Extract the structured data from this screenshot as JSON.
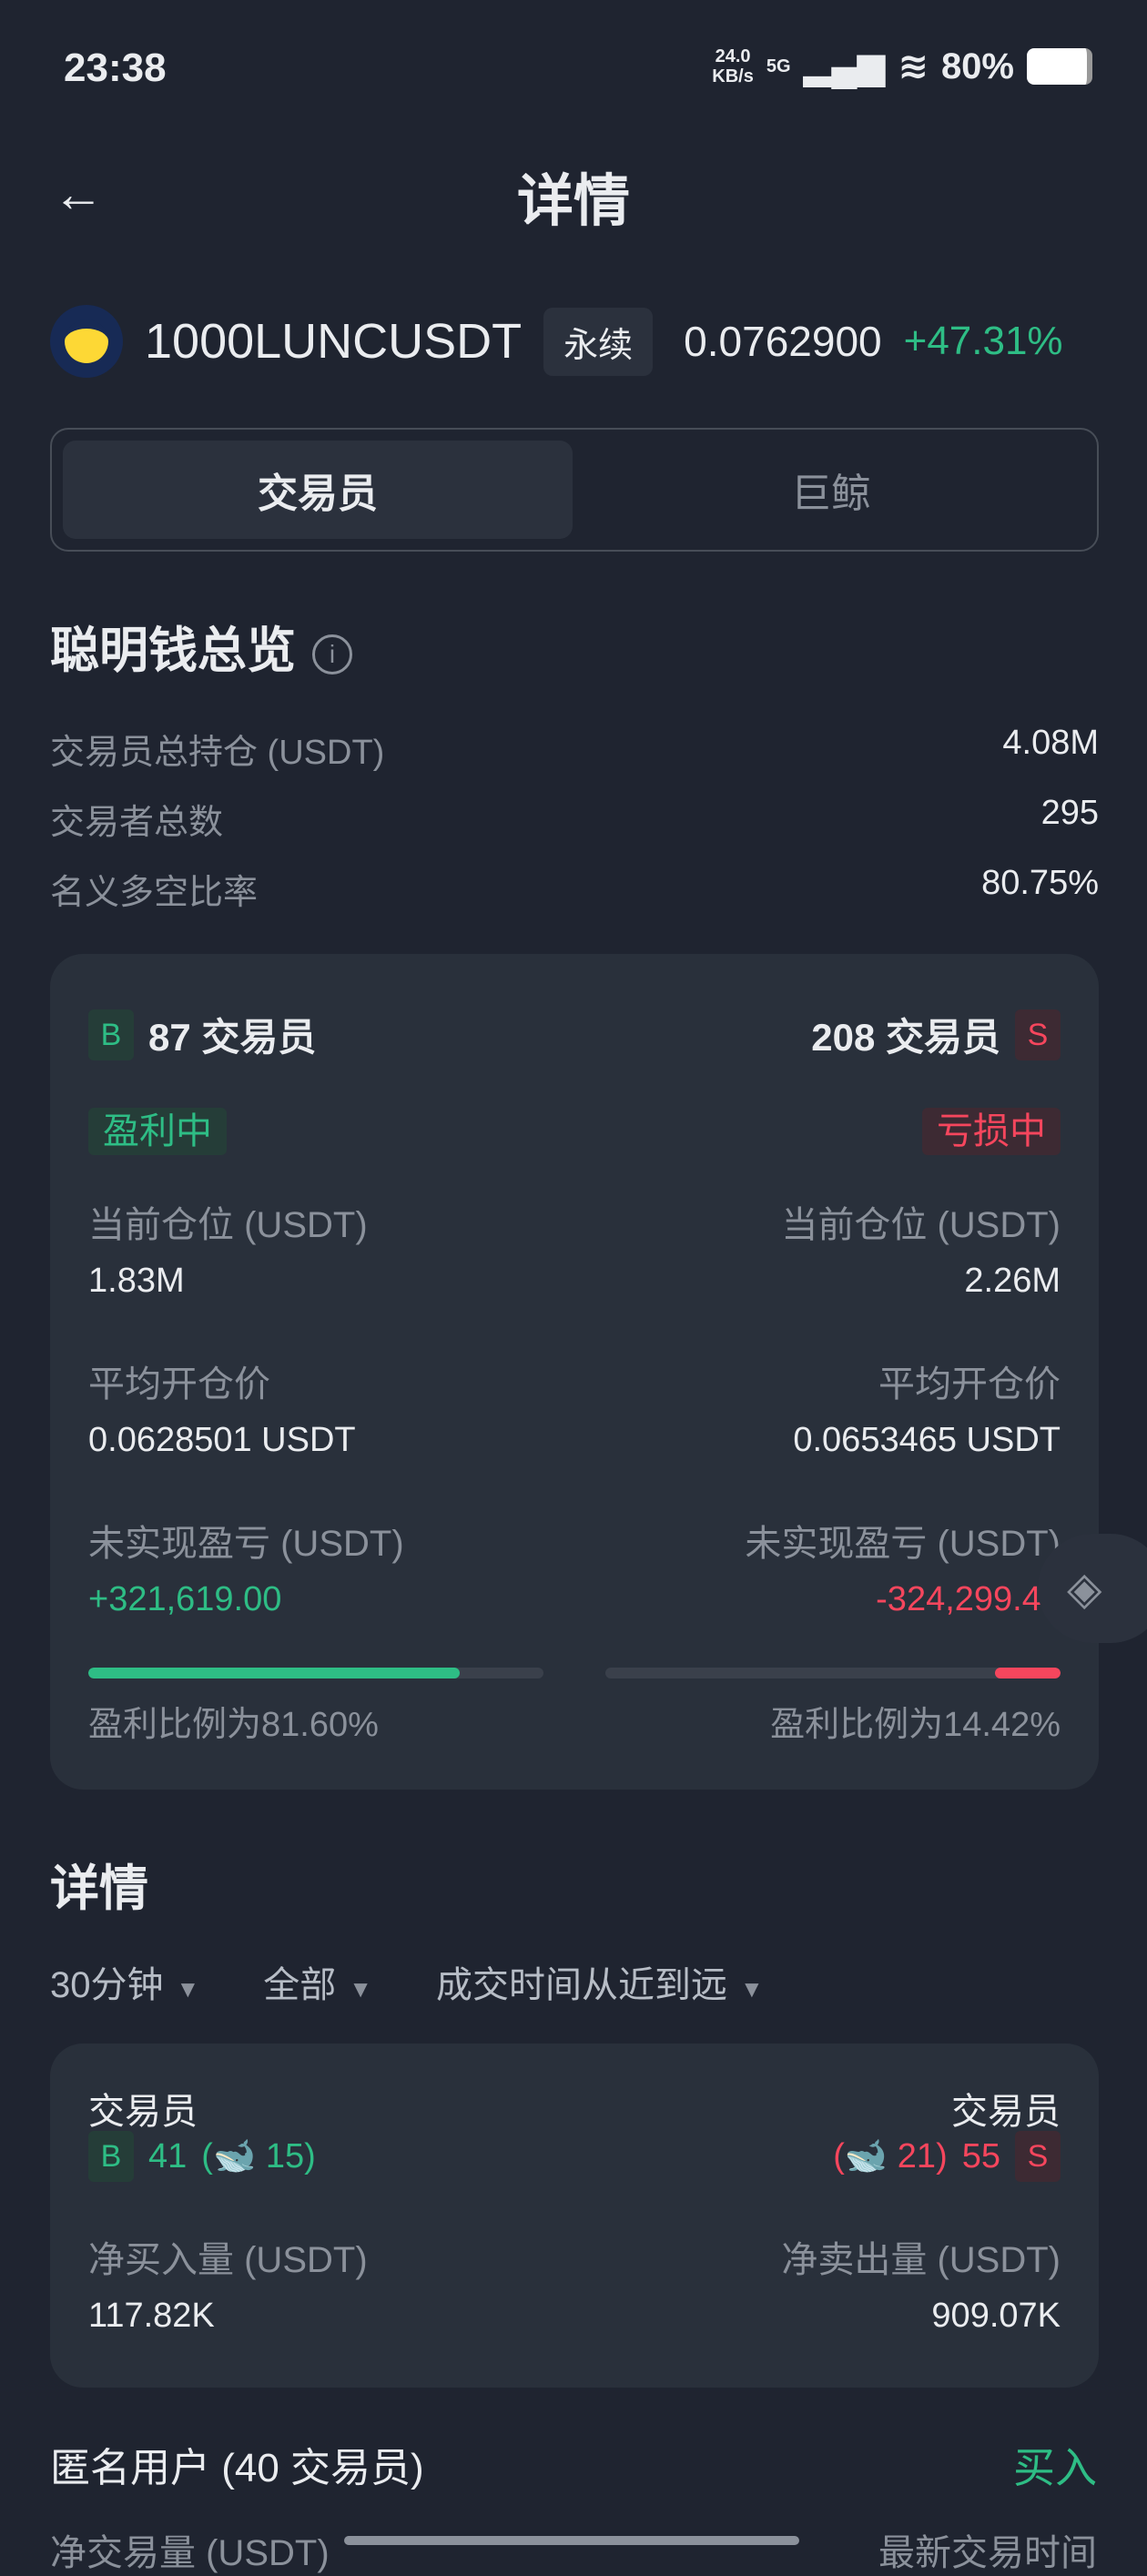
{
  "status": {
    "time": "23:38",
    "net_speed": "24.0",
    "net_unit": "KB/s",
    "network": "5G",
    "battery": "80%"
  },
  "header": {
    "title": "详情",
    "back_icon": "arrow-left-icon"
  },
  "coin": {
    "symbol": "1000LUNCUSDT",
    "type_tag": "永续",
    "price": "0.0762900",
    "change": "+47.31%"
  },
  "tabs": [
    {
      "label": "交易员",
      "active": true
    },
    {
      "label": "巨鲸",
      "active": false
    }
  ],
  "overview": {
    "title": "聪明钱总览",
    "rows": [
      {
        "label": "交易员总持仓 (USDT)",
        "value": "4.08M"
      },
      {
        "label": "交易者总数",
        "value": "295"
      },
      {
        "label": "名义多空比率",
        "value": "80.75%"
      }
    ]
  },
  "summary": {
    "long": {
      "badge": "B",
      "count": "87 交易员",
      "status": "盈利中",
      "pos_label": "当前仓位 (USDT)",
      "pos": "1.83M",
      "avg_label": "平均开仓价",
      "avg": "0.0628501 USDT",
      "pnl_label": "未实现盈亏 (USDT)",
      "pnl": "+321,619.00",
      "ratio_text": "盈利比例为81.60%",
      "ratio": 81.6
    },
    "short": {
      "badge": "S",
      "count": "208 交易员",
      "status": "亏损中",
      "pos_label": "当前仓位 (USDT)",
      "pos": "2.26M",
      "avg_label": "平均开仓价",
      "avg": "0.0653465 USDT",
      "pnl_label": "未实现盈亏 (USDT)",
      "pnl": "-324,299.46",
      "ratio_text": "盈利比例为14.42%",
      "ratio": 14.42
    }
  },
  "details": {
    "title": "详情",
    "filters": [
      "30分钟",
      "全部",
      "成交时间从近到远"
    ],
    "buy": {
      "label": "交易员",
      "badge": "B",
      "count": "41",
      "whale": "15",
      "vol_label": "净买入量 (USDT)",
      "vol": "117.82K"
    },
    "sell": {
      "label": "交易员",
      "badge": "S",
      "count": "55",
      "whale": "21",
      "vol_label": "净卖出量 (USDT)",
      "vol": "909.07K"
    }
  },
  "anon": {
    "title": "匿名用户 (40 交易员)",
    "side": "买入",
    "col1": "净交易量 (USDT)",
    "col2": "最新交易时间"
  },
  "colors": {
    "green": "#2ebd85",
    "red": "#f6465d",
    "bg": "#1f2430",
    "card": "#29303b"
  }
}
